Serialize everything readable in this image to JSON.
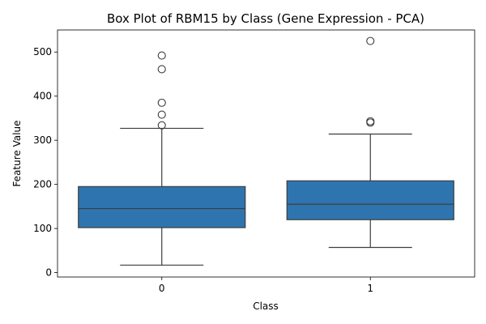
{
  "chart_data": {
    "type": "box",
    "title": "Box Plot of RBM15 by Class (Gene Expression - PCA)",
    "xlabel": "Class",
    "ylabel": "Feature Value",
    "categories": [
      "0",
      "1"
    ],
    "ylim": [
      -10,
      550
    ],
    "yticks": [
      0,
      100,
      200,
      300,
      400,
      500
    ],
    "grid": false,
    "box_color": "#2e75b0",
    "line_color": "#3d3d3d",
    "boxes": [
      {
        "category": "0",
        "whisker_low": 17,
        "q1": 102,
        "median": 145,
        "q3": 195,
        "whisker_high": 327,
        "outliers": [
          334,
          358,
          385,
          461,
          492
        ]
      },
      {
        "category": "1",
        "whisker_low": 57,
        "q1": 120,
        "median": 155,
        "q3": 208,
        "whisker_high": 314,
        "outliers": [
          340,
          343,
          525
        ]
      }
    ]
  }
}
